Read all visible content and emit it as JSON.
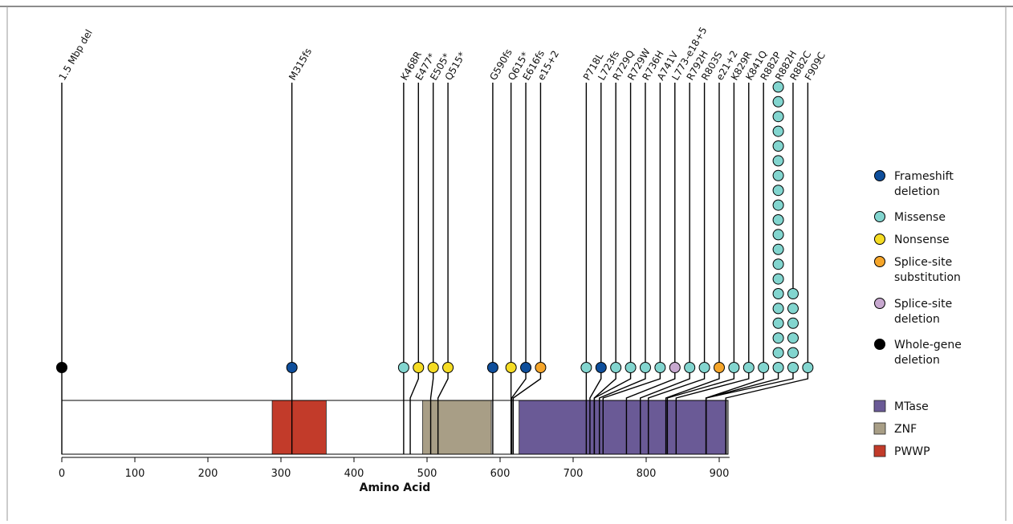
{
  "chart_data": {
    "type": "lollipop",
    "xlabel": "Amino Acid",
    "xlim": [
      0,
      912
    ],
    "xticks": [
      0,
      100,
      200,
      300,
      400,
      500,
      600,
      700,
      800,
      900
    ],
    "domains": [
      {
        "name": "PWWP",
        "start": 288,
        "end": 362,
        "color": "#c23b2a"
      },
      {
        "name": "ZNF",
        "start": 494,
        "end": 588,
        "color": "#a89e86"
      },
      {
        "name": "MTase",
        "start": 626,
        "end": 910,
        "color": "#6a5a96"
      }
    ],
    "mutation_types": [
      {
        "key": "frameshift",
        "label": "Frameshift deletion",
        "color": "#0e4e9b"
      },
      {
        "key": "missense",
        "label": "Missense",
        "color": "#82d5cf"
      },
      {
        "key": "nonsense",
        "label": "Nonsense",
        "color": "#f5dc24"
      },
      {
        "key": "splice_sub",
        "label": "Splice-site substitution",
        "color": "#f5a52a"
      },
      {
        "key": "splice_del",
        "label": "Splice-site deletion",
        "color": "#c7a8cf"
      },
      {
        "key": "whole_gene",
        "label": "Whole-gene deletion",
        "color": "#000000"
      }
    ],
    "mutations": [
      {
        "label": "1.5 Mbp del",
        "position": 0,
        "type": "whole_gene",
        "count": 1
      },
      {
        "label": "M315fs",
        "position": 315,
        "type": "frameshift",
        "count": 1
      },
      {
        "label": "K468R",
        "position": 468,
        "type": "missense",
        "count": 1
      },
      {
        "label": "E477*",
        "position": 477,
        "type": "nonsense",
        "count": 1
      },
      {
        "label": "E505*",
        "position": 505,
        "type": "nonsense",
        "count": 1
      },
      {
        "label": "Q515*",
        "position": 515,
        "type": "nonsense",
        "count": 1
      },
      {
        "label": "G590fs",
        "position": 590,
        "type": "frameshift",
        "count": 1
      },
      {
        "label": "Q615*",
        "position": 615,
        "type": "nonsense",
        "count": 1
      },
      {
        "label": "E616fs",
        "position": 616,
        "type": "frameshift",
        "count": 1
      },
      {
        "label": "e15+2",
        "position": 618,
        "type": "splice_sub",
        "count": 1
      },
      {
        "label": "P718L",
        "position": 718,
        "type": "missense",
        "count": 1
      },
      {
        "label": "L723fs",
        "position": 723,
        "type": "frameshift",
        "count": 1
      },
      {
        "label": "R729Q",
        "position": 729,
        "type": "missense",
        "count": 1
      },
      {
        "label": "R729W",
        "position": 729,
        "type": "missense",
        "count": 1
      },
      {
        "label": "R736H",
        "position": 736,
        "type": "missense",
        "count": 1
      },
      {
        "label": "A741V",
        "position": 741,
        "type": "missense",
        "count": 1
      },
      {
        "label": "L773-e18+5",
        "position": 773,
        "type": "splice_del",
        "count": 1
      },
      {
        "label": "R792H",
        "position": 792,
        "type": "missense",
        "count": 1
      },
      {
        "label": "R803S",
        "position": 803,
        "type": "missense",
        "count": 1
      },
      {
        "label": "e21+2",
        "position": 827,
        "type": "splice_sub",
        "count": 1
      },
      {
        "label": "K829R",
        "position": 829,
        "type": "missense",
        "count": 1
      },
      {
        "label": "K841Q",
        "position": 841,
        "type": "missense",
        "count": 1
      },
      {
        "label": "R882P",
        "position": 882,
        "type": "missense",
        "count": 1
      },
      {
        "label": "R882H",
        "position": 882,
        "type": "missense",
        "count": 20
      },
      {
        "label": "R882C",
        "position": 882,
        "type": "missense",
        "count": 6
      },
      {
        "label": "F909C",
        "position": 909,
        "type": "missense",
        "count": 1
      }
    ],
    "legend_position": "right"
  }
}
